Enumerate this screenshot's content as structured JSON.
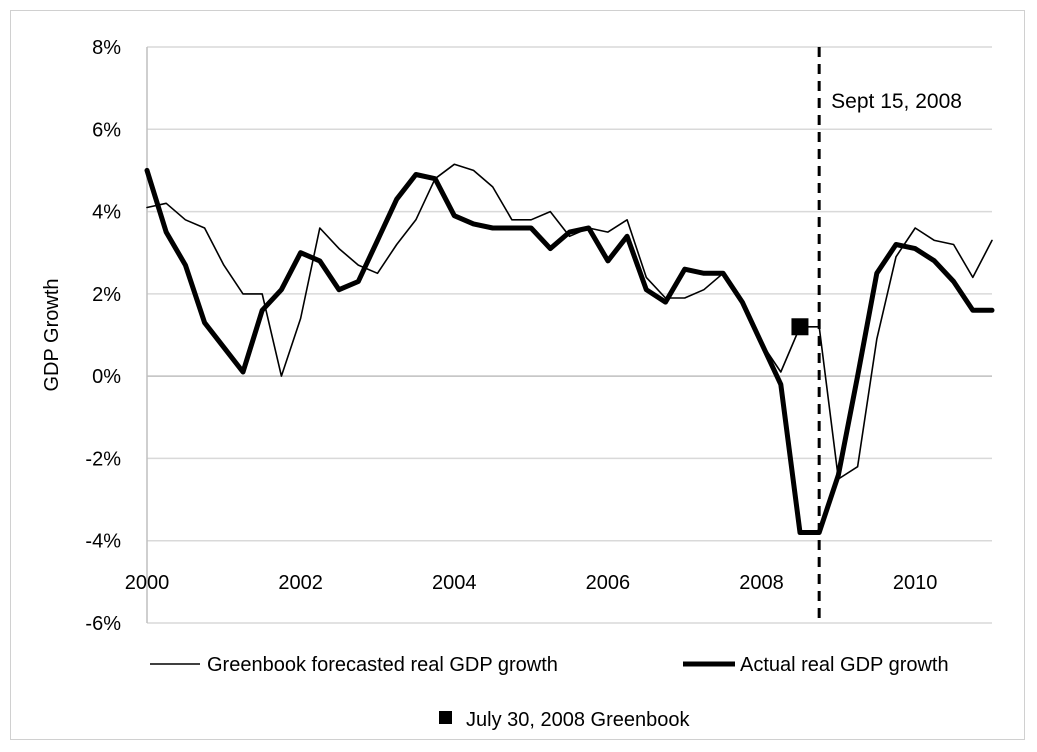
{
  "chart_data": {
    "type": "line",
    "ylabel": "GDP Growth",
    "xlim": [
      2000,
      2011
    ],
    "ylim": [
      -6,
      8
    ],
    "y_ticks": [
      8,
      6,
      4,
      2,
      0,
      -2,
      -4,
      -6
    ],
    "y_tick_labels": [
      "8%",
      "6%",
      "4%",
      "2%",
      "0%",
      "-2%",
      "-4%",
      "-6%"
    ],
    "x_ticks": [
      2000,
      2002,
      2004,
      2006,
      2008,
      2010
    ],
    "x_tick_labels": [
      "2000",
      "2002",
      "2004",
      "2006",
      "2008",
      "2010"
    ],
    "grid": "horizontal",
    "legend_position": "bottom",
    "series": [
      {
        "name": "Greenbook forecasted real GDP growth",
        "style": "thin",
        "color": "#000000",
        "x": [
          2000.0,
          2000.25,
          2000.5,
          2000.75,
          2001.0,
          2001.25,
          2001.5,
          2001.75,
          2002.0,
          2002.25,
          2002.5,
          2002.75,
          2003.0,
          2003.25,
          2003.5,
          2003.75,
          2004.0,
          2004.25,
          2004.5,
          2004.75,
          2005.0,
          2005.25,
          2005.5,
          2005.75,
          2006.0,
          2006.25,
          2006.5,
          2006.75,
          2007.0,
          2007.25,
          2007.5,
          2007.75,
          2008.0,
          2008.25,
          2008.5,
          2008.75,
          2009.0,
          2009.25,
          2009.5,
          2009.75,
          2010.0,
          2010.25,
          2010.5,
          2010.75,
          2011.0
        ],
        "y": [
          4.1,
          4.2,
          3.8,
          3.6,
          2.7,
          2.0,
          2.0,
          0.0,
          1.4,
          3.6,
          3.1,
          2.7,
          2.5,
          3.2,
          3.8,
          4.8,
          5.15,
          5.0,
          4.6,
          3.8,
          3.8,
          4.0,
          3.4,
          3.6,
          3.5,
          3.8,
          2.4,
          1.9,
          1.9,
          2.1,
          2.5,
          1.8,
          0.8,
          0.1,
          1.2,
          1.2,
          -2.5,
          -2.2,
          0.9,
          2.9,
          3.6,
          3.3,
          3.2,
          2.4,
          3.3
        ]
      },
      {
        "name": "Actual real GDP growth",
        "style": "thick",
        "color": "#000000",
        "x": [
          2000.0,
          2000.25,
          2000.5,
          2000.75,
          2001.0,
          2001.25,
          2001.5,
          2001.75,
          2002.0,
          2002.25,
          2002.5,
          2002.75,
          2003.0,
          2003.25,
          2003.5,
          2003.75,
          2004.0,
          2004.25,
          2004.5,
          2004.75,
          2005.0,
          2005.25,
          2005.5,
          2005.75,
          2006.0,
          2006.25,
          2006.5,
          2006.75,
          2007.0,
          2007.25,
          2007.5,
          2007.75,
          2008.0,
          2008.25,
          2008.5,
          2008.75,
          2009.0,
          2009.25,
          2009.5,
          2009.75,
          2010.0,
          2010.25,
          2010.5,
          2010.75,
          2011.0
        ],
        "y": [
          5.0,
          3.5,
          2.7,
          1.3,
          0.7,
          0.1,
          1.6,
          2.1,
          3.0,
          2.8,
          2.1,
          2.3,
          3.3,
          4.3,
          4.9,
          4.8,
          3.9,
          3.7,
          3.6,
          3.6,
          3.6,
          3.1,
          3.5,
          3.6,
          2.8,
          3.4,
          2.1,
          1.8,
          2.6,
          2.5,
          2.5,
          1.8,
          0.8,
          -0.2,
          -3.8,
          -3.8,
          -2.4,
          0.0,
          2.5,
          3.2,
          3.1,
          2.8,
          2.3,
          1.6,
          1.6
        ]
      }
    ],
    "markers": [
      {
        "name": "July 30, 2008 Greenbook",
        "shape": "square",
        "color": "#000000",
        "x": 2008.5,
        "y": 1.2
      }
    ],
    "vline": {
      "x": 2008.75,
      "label": "Sept 15, 2008",
      "style": "dashed"
    }
  }
}
